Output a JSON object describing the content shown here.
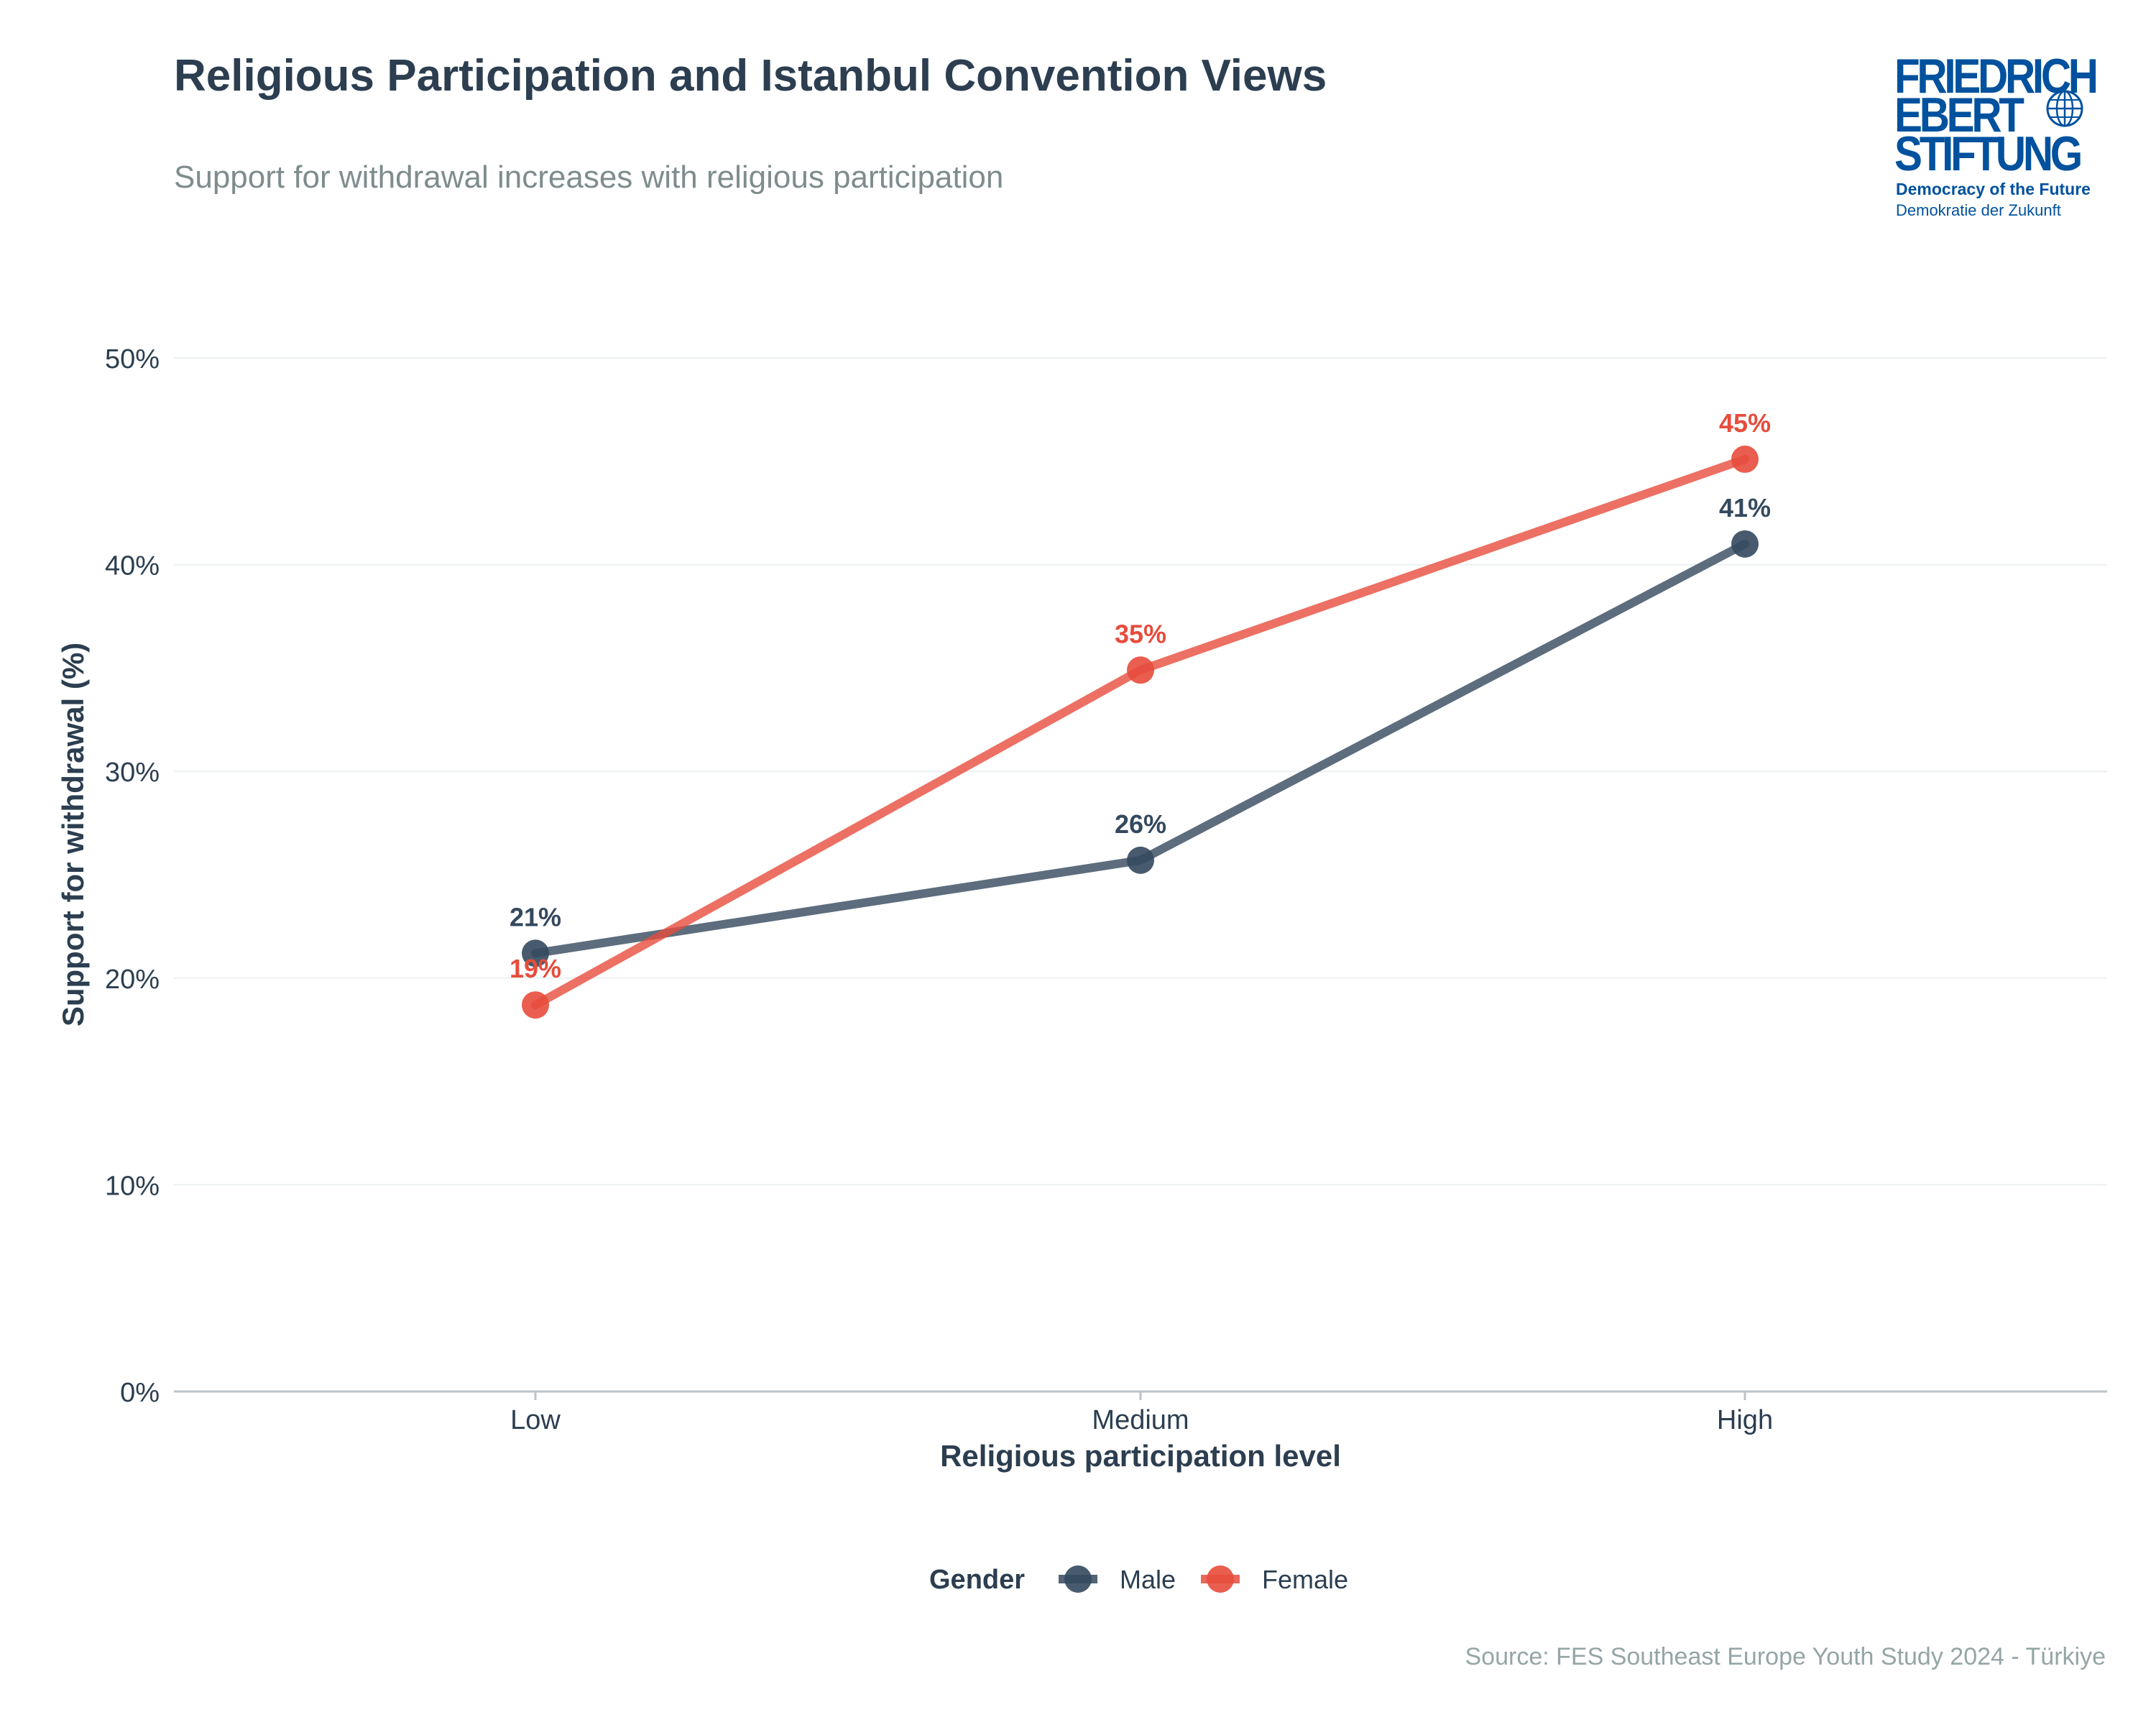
{
  "title": "Religious Participation and Istanbul Convention Views",
  "subtitle": "Support for withdrawal increases with religious participation",
  "source": "Source: FES Southeast Europe Youth Study 2024 - Türkiye",
  "logo": {
    "line1": "FRIEDRICH",
    "line2": "EBERT",
    "line3": "STIFTUNG",
    "tagline": "Democracy of the Future",
    "tagline_de": "Demokratie der Zukunft"
  },
  "colors": {
    "male": "#34495e",
    "female": "#e74c3c",
    "grid": "#ecf0f1",
    "axis": "#bdc3c7",
    "text": "#2c3e50",
    "logo": "#00519e"
  },
  "chart_data": {
    "type": "line",
    "title": "Religious Participation and Istanbul Convention Views",
    "xlabel": "Religious participation level",
    "ylabel": "Support for withdrawal (%)",
    "categories": [
      "Low",
      "Medium",
      "High"
    ],
    "ylim": [
      0,
      50
    ],
    "yticks": [
      0,
      10,
      20,
      30,
      40,
      50
    ],
    "ytick_labels": [
      "0%",
      "10%",
      "20%",
      "30%",
      "40%",
      "50%"
    ],
    "grid": true,
    "legend_title": "Gender",
    "legend_position": "bottom",
    "series": [
      {
        "name": "Male",
        "color": "#34495e",
        "values": [
          21.2,
          25.7,
          41.0
        ],
        "labels": [
          "21%",
          "26%",
          "41%"
        ]
      },
      {
        "name": "Female",
        "color": "#e74c3c",
        "values": [
          18.7,
          34.9,
          45.1
        ],
        "labels": [
          "19%",
          "35%",
          "45%"
        ]
      }
    ]
  }
}
